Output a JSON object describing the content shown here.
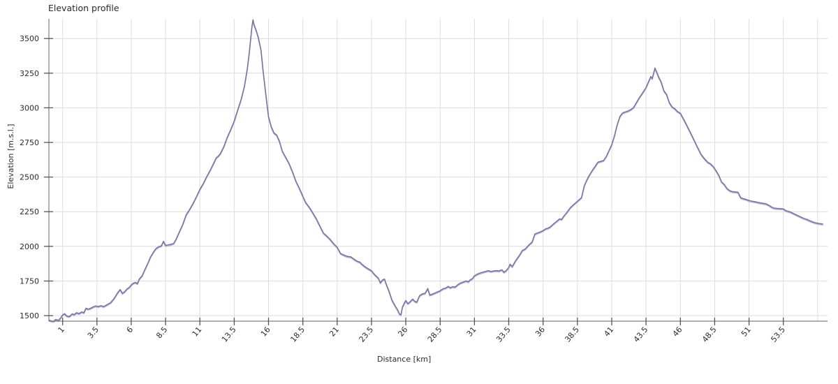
{
  "header": {
    "title": "Elevation profile"
  },
  "chart_data": {
    "type": "line",
    "title": "Elevation profile",
    "xlabel": "Distance [km]",
    "ylabel": "Elevation [m.s.l.]",
    "xlim": [
      0,
      56.72
    ],
    "ylim": [
      1460,
      3642
    ],
    "grid": true,
    "legend": "none",
    "x_tick_values": [
      1,
      3.5,
      6,
      8.5,
      11,
      13.5,
      16,
      18.5,
      21,
      23.5,
      26,
      28.5,
      31,
      33.5,
      36,
      38.5,
      41,
      43.5,
      46,
      48.5,
      51,
      53.5
    ],
    "x_tick_labels": [
      "1",
      "3.5",
      "6",
      "8.5",
      "11",
      "13.5",
      "16",
      "18.5",
      "21",
      "23.5",
      "26",
      "28.5",
      "31",
      "33.5",
      "36",
      "38.5",
      "41",
      "43.5",
      "46",
      "48.5",
      "51",
      "53.5"
    ],
    "x_gridlines": [
      1,
      3.5,
      6,
      8.5,
      11,
      13.5,
      16,
      18.5,
      21,
      23.5,
      26,
      28.5,
      31,
      33.5,
      36,
      38.5,
      41,
      43.5,
      46,
      48.5,
      51,
      53.5,
      56
    ],
    "y_tick_values": [
      1500,
      1750,
      2000,
      2250,
      2500,
      2750,
      3000,
      3250,
      3500
    ],
    "y_tick_labels": [
      "1500",
      "1750",
      "2000",
      "2250",
      "2500",
      "2750",
      "3000",
      "3250",
      "3500"
    ],
    "colors": {
      "line": "#72749e",
      "line_highlight": "#b4b5d4",
      "grid": "#dcdcdc",
      "axis": "#808080",
      "tick": "#555555",
      "text": "#2b2b2b"
    },
    "series": [
      {
        "name": "elevation",
        "points": [
          [
            0,
            1468
          ],
          [
            0.2,
            1461
          ],
          [
            0.35,
            1459
          ],
          [
            0.5,
            1472
          ],
          [
            0.7,
            1466
          ],
          [
            0.9,
            1488
          ],
          [
            1,
            1506
          ],
          [
            1.15,
            1514
          ],
          [
            1.3,
            1498
          ],
          [
            1.5,
            1494
          ],
          [
            1.7,
            1513
          ],
          [
            1.85,
            1507
          ],
          [
            2,
            1521
          ],
          [
            2.2,
            1515
          ],
          [
            2.4,
            1527
          ],
          [
            2.55,
            1521
          ],
          [
            2.7,
            1553
          ],
          [
            2.85,
            1547
          ],
          [
            3,
            1551
          ],
          [
            3.2,
            1562
          ],
          [
            3.4,
            1570
          ],
          [
            3.6,
            1566
          ],
          [
            3.8,
            1572
          ],
          [
            4,
            1566
          ],
          [
            4.2,
            1577
          ],
          [
            4.5,
            1594
          ],
          [
            4.75,
            1624
          ],
          [
            5,
            1664
          ],
          [
            5.2,
            1689
          ],
          [
            5.35,
            1661
          ],
          [
            5.5,
            1671
          ],
          [
            5.7,
            1694
          ],
          [
            5.85,
            1703
          ],
          [
            6,
            1721
          ],
          [
            6.15,
            1734
          ],
          [
            6.3,
            1740
          ],
          [
            6.45,
            1731
          ],
          [
            6.6,
            1766
          ],
          [
            6.8,
            1789
          ],
          [
            7,
            1834
          ],
          [
            7.2,
            1875
          ],
          [
            7.4,
            1923
          ],
          [
            7.6,
            1956
          ],
          [
            7.8,
            1984
          ],
          [
            8,
            1997
          ],
          [
            8.2,
            2004
          ],
          [
            8.35,
            2037
          ],
          [
            8.5,
            2007
          ],
          [
            8.7,
            2011
          ],
          [
            8.9,
            2015
          ],
          [
            9.1,
            2022
          ],
          [
            9.3,
            2058
          ],
          [
            9.5,
            2104
          ],
          [
            9.75,
            2158
          ],
          [
            10,
            2228
          ],
          [
            10.25,
            2266
          ],
          [
            10.5,
            2309
          ],
          [
            10.75,
            2358
          ],
          [
            11,
            2411
          ],
          [
            11.25,
            2454
          ],
          [
            11.5,
            2504
          ],
          [
            11.75,
            2549
          ],
          [
            12,
            2599
          ],
          [
            12.2,
            2640
          ],
          [
            12.35,
            2652
          ],
          [
            12.5,
            2671
          ],
          [
            12.75,
            2721
          ],
          [
            13,
            2789
          ],
          [
            13.25,
            2844
          ],
          [
            13.5,
            2904
          ],
          [
            13.75,
            2983
          ],
          [
            14,
            3058
          ],
          [
            14.25,
            3158
          ],
          [
            14.45,
            3280
          ],
          [
            14.6,
            3400
          ],
          [
            14.72,
            3520
          ],
          [
            14.8,
            3590
          ],
          [
            14.87,
            3636
          ],
          [
            14.95,
            3598
          ],
          [
            15.1,
            3560
          ],
          [
            15.25,
            3510
          ],
          [
            15.45,
            3420
          ],
          [
            15.6,
            3270
          ],
          [
            15.8,
            3100
          ],
          [
            16,
            2937
          ],
          [
            16.2,
            2863
          ],
          [
            16.4,
            2818
          ],
          [
            16.6,
            2803
          ],
          [
            16.8,
            2757
          ],
          [
            17,
            2688
          ],
          [
            17.25,
            2643
          ],
          [
            17.5,
            2598
          ],
          [
            17.75,
            2538
          ],
          [
            18,
            2470
          ],
          [
            18.25,
            2418
          ],
          [
            18.5,
            2362
          ],
          [
            18.7,
            2318
          ],
          [
            19,
            2278
          ],
          [
            19.25,
            2238
          ],
          [
            19.5,
            2196
          ],
          [
            19.75,
            2146
          ],
          [
            20,
            2096
          ],
          [
            20.25,
            2074
          ],
          [
            20.5,
            2049
          ],
          [
            20.75,
            2019
          ],
          [
            21,
            1994
          ],
          [
            21.25,
            1949
          ],
          [
            21.5,
            1937
          ],
          [
            21.75,
            1927
          ],
          [
            22,
            1924
          ],
          [
            22.25,
            1906
          ],
          [
            22.5,
            1891
          ],
          [
            22.65,
            1887
          ],
          [
            22.8,
            1871
          ],
          [
            23,
            1855
          ],
          [
            23.25,
            1839
          ],
          [
            23.5,
            1824
          ],
          [
            23.75,
            1794
          ],
          [
            24,
            1771
          ],
          [
            24.15,
            1737
          ],
          [
            24.3,
            1757
          ],
          [
            24.45,
            1764
          ],
          [
            24.6,
            1721
          ],
          [
            24.8,
            1671
          ],
          [
            25,
            1611
          ],
          [
            25.2,
            1575
          ],
          [
            25.4,
            1542
          ],
          [
            25.55,
            1511
          ],
          [
            25.65,
            1507
          ],
          [
            25.75,
            1561
          ],
          [
            25.9,
            1591
          ],
          [
            26,
            1609
          ],
          [
            26.15,
            1587
          ],
          [
            26.3,
            1599
          ],
          [
            26.5,
            1619
          ],
          [
            26.65,
            1604
          ],
          [
            26.8,
            1597
          ],
          [
            27,
            1644
          ],
          [
            27.2,
            1657
          ],
          [
            27.4,
            1661
          ],
          [
            27.6,
            1696
          ],
          [
            27.75,
            1649
          ],
          [
            27.9,
            1654
          ],
          [
            28.1,
            1662
          ],
          [
            28.3,
            1671
          ],
          [
            28.5,
            1679
          ],
          [
            28.7,
            1694
          ],
          [
            28.9,
            1699
          ],
          [
            29.1,
            1711
          ],
          [
            29.25,
            1701
          ],
          [
            29.4,
            1709
          ],
          [
            29.6,
            1707
          ],
          [
            29.8,
            1724
          ],
          [
            30,
            1736
          ],
          [
            30.2,
            1743
          ],
          [
            30.4,
            1751
          ],
          [
            30.55,
            1744
          ],
          [
            30.7,
            1759
          ],
          [
            30.85,
            1767
          ],
          [
            31,
            1787
          ],
          [
            31.2,
            1799
          ],
          [
            31.4,
            1807
          ],
          [
            31.6,
            1814
          ],
          [
            31.8,
            1819
          ],
          [
            32,
            1825
          ],
          [
            32.2,
            1819
          ],
          [
            32.4,
            1823
          ],
          [
            32.6,
            1825
          ],
          [
            32.8,
            1823
          ],
          [
            33,
            1831
          ],
          [
            33.15,
            1814
          ],
          [
            33.3,
            1824
          ],
          [
            33.5,
            1847
          ],
          [
            33.6,
            1871
          ],
          [
            33.75,
            1854
          ],
          [
            33.9,
            1879
          ],
          [
            34,
            1897
          ],
          [
            34.25,
            1931
          ],
          [
            34.5,
            1971
          ],
          [
            34.7,
            1981
          ],
          [
            35,
            2014
          ],
          [
            35.2,
            2031
          ],
          [
            35.4,
            2089
          ],
          [
            35.6,
            2097
          ],
          [
            35.8,
            2104
          ],
          [
            36,
            2114
          ],
          [
            36.2,
            2127
          ],
          [
            36.35,
            2131
          ],
          [
            36.5,
            2139
          ],
          [
            36.75,
            2161
          ],
          [
            37,
            2181
          ],
          [
            37.2,
            2199
          ],
          [
            37.35,
            2194
          ],
          [
            37.5,
            2217
          ],
          [
            37.75,
            2247
          ],
          [
            38,
            2281
          ],
          [
            38.2,
            2299
          ],
          [
            38.4,
            2317
          ],
          [
            38.6,
            2334
          ],
          [
            38.8,
            2352
          ],
          [
            39,
            2438
          ],
          [
            39.2,
            2482
          ],
          [
            39.4,
            2518
          ],
          [
            39.6,
            2550
          ],
          [
            39.8,
            2578
          ],
          [
            40,
            2608
          ],
          [
            40.2,
            2614
          ],
          [
            40.4,
            2619
          ],
          [
            40.6,
            2648
          ],
          [
            40.8,
            2690
          ],
          [
            41,
            2734
          ],
          [
            41.2,
            2798
          ],
          [
            41.4,
            2878
          ],
          [
            41.6,
            2938
          ],
          [
            41.8,
            2963
          ],
          [
            42,
            2971
          ],
          [
            42.2,
            2978
          ],
          [
            42.4,
            2988
          ],
          [
            42.6,
            3003
          ],
          [
            42.8,
            3038
          ],
          [
            43,
            3071
          ],
          [
            43.25,
            3108
          ],
          [
            43.5,
            3146
          ],
          [
            43.7,
            3193
          ],
          [
            43.85,
            3226
          ],
          [
            43.95,
            3211
          ],
          [
            44.05,
            3248
          ],
          [
            44.15,
            3287
          ],
          [
            44.3,
            3253
          ],
          [
            44.45,
            3216
          ],
          [
            44.6,
            3188
          ],
          [
            44.8,
            3123
          ],
          [
            45,
            3096
          ],
          [
            45.2,
            3038
          ],
          [
            45.4,
            3006
          ],
          [
            45.6,
            2993
          ],
          [
            45.8,
            2973
          ],
          [
            46,
            2961
          ],
          [
            46.25,
            2916
          ],
          [
            46.5,
            2868
          ],
          [
            46.75,
            2818
          ],
          [
            47,
            2768
          ],
          [
            47.25,
            2716
          ],
          [
            47.5,
            2666
          ],
          [
            47.75,
            2633
          ],
          [
            48,
            2607
          ],
          [
            48.2,
            2596
          ],
          [
            48.4,
            2576
          ],
          [
            48.6,
            2546
          ],
          [
            48.8,
            2513
          ],
          [
            49,
            2466
          ],
          [
            49.2,
            2446
          ],
          [
            49.4,
            2418
          ],
          [
            49.6,
            2402
          ],
          [
            49.8,
            2395
          ],
          [
            50,
            2393
          ],
          [
            50.2,
            2391
          ],
          [
            50.4,
            2351
          ],
          [
            50.6,
            2344
          ],
          [
            50.8,
            2339
          ],
          [
            51,
            2331
          ],
          [
            51.25,
            2325
          ],
          [
            51.5,
            2321
          ],
          [
            51.75,
            2315
          ],
          [
            52,
            2311
          ],
          [
            52.25,
            2307
          ],
          [
            52.5,
            2294
          ],
          [
            52.7,
            2281
          ],
          [
            52.9,
            2275
          ],
          [
            53.2,
            2273
          ],
          [
            53.5,
            2271
          ],
          [
            53.7,
            2257
          ],
          [
            54,
            2249
          ],
          [
            54.2,
            2239
          ],
          [
            54.5,
            2225
          ],
          [
            54.8,
            2211
          ],
          [
            55,
            2202
          ],
          [
            55.2,
            2195
          ],
          [
            55.5,
            2182
          ],
          [
            55.8,
            2171
          ],
          [
            56.1,
            2165
          ],
          [
            56.4,
            2161
          ]
        ]
      }
    ]
  }
}
